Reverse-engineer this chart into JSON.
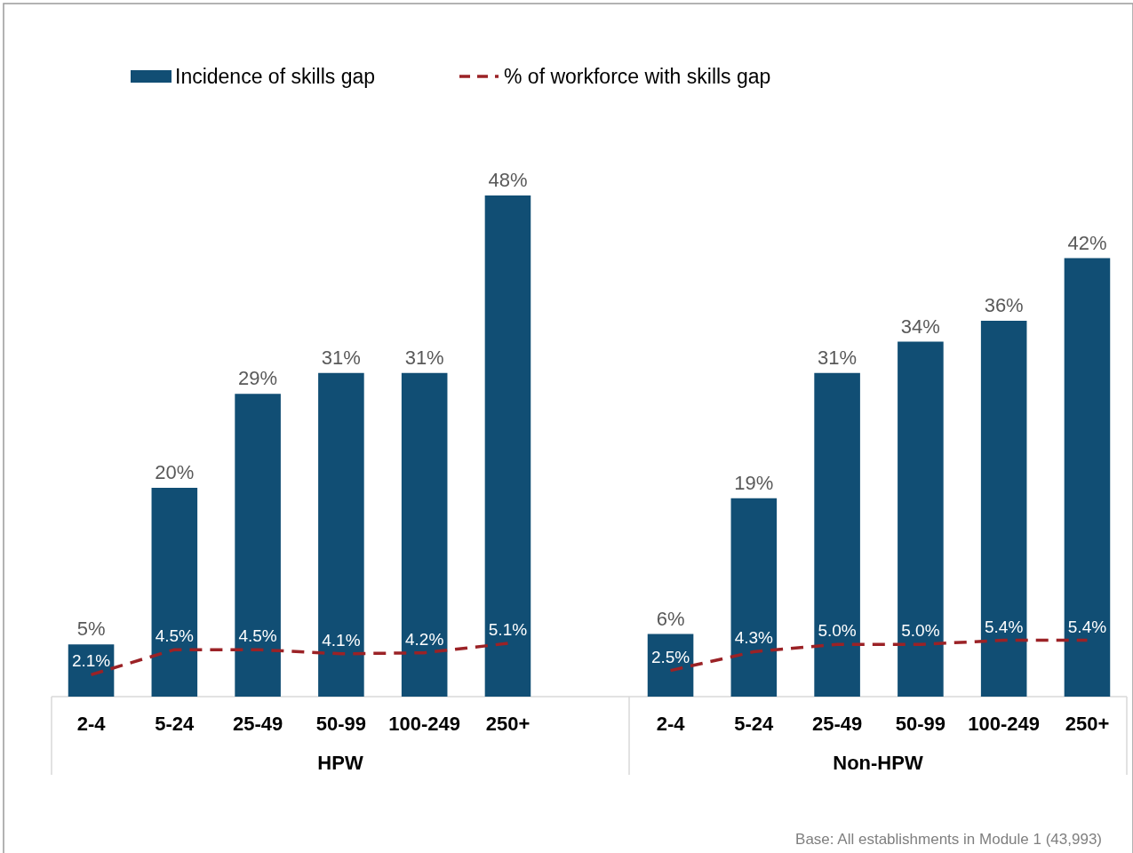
{
  "chart_data": [
    {
      "type": "bar",
      "categories": [
        "2-4",
        "5-24",
        "25-49",
        "50-99",
        "100-249",
        "250+"
      ],
      "xlabel": "HPW",
      "legend": "top",
      "series": [
        {
          "name": "Incidence of skills gap",
          "color": "#114e74",
          "values": [
            5,
            20,
            29,
            31,
            31,
            48
          ],
          "value_labels": [
            "5%",
            "20%",
            "29%",
            "31%",
            "31%",
            "48%"
          ]
        },
        {
          "name": "% of workforce with skills gap",
          "type": "line",
          "color": "#9b2226",
          "line_style": "dashed",
          "values": [
            2.1,
            4.5,
            4.5,
            4.1,
            4.2,
            5.1
          ],
          "value_labels": [
            "2.1%",
            "4.5%",
            "4.5%",
            "4.1%",
            "4.2%",
            "5.1%"
          ]
        }
      ]
    },
    {
      "type": "bar",
      "categories": [
        "2-4",
        "5-24",
        "25-49",
        "50-99",
        "100-249",
        "250+"
      ],
      "xlabel": "Non-HPW",
      "annotations": [
        "Base: All establishments in Module 1 (43,993)"
      ],
      "series": [
        {
          "color": "#114e74",
          "values": [
            6,
            19,
            31,
            34,
            36,
            42
          ],
          "value_labels": [
            "6%",
            "19%",
            "31%",
            "34%",
            "36%",
            "42%"
          ]
        },
        {
          "type": "line",
          "color": "#9b2226",
          "line_style": "dashed",
          "values": [
            2.5,
            4.3,
            5.0,
            5.0,
            5.4,
            5.4
          ],
          "value_labels": [
            "2.5%",
            "4.3%",
            "5.0%",
            "5.0%",
            "5.4%",
            "5.4%"
          ]
        }
      ]
    }
  ]
}
